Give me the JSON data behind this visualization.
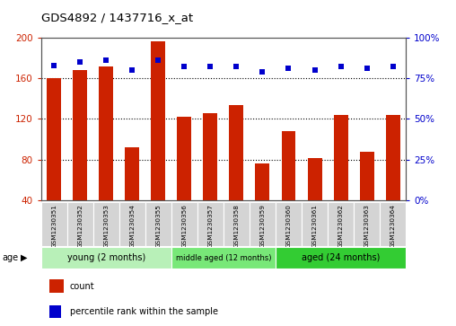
{
  "title": "GDS4892 / 1437716_x_at",
  "samples": [
    "GSM1230351",
    "GSM1230352",
    "GSM1230353",
    "GSM1230354",
    "GSM1230355",
    "GSM1230356",
    "GSM1230357",
    "GSM1230358",
    "GSM1230359",
    "GSM1230360",
    "GSM1230361",
    "GSM1230362",
    "GSM1230363",
    "GSM1230364"
  ],
  "counts": [
    160,
    168,
    172,
    92,
    196,
    122,
    126,
    134,
    76,
    108,
    82,
    124,
    88,
    124
  ],
  "percentiles": [
    83,
    85,
    86,
    80,
    86,
    82,
    82,
    82,
    79,
    81,
    80,
    82,
    81,
    82
  ],
  "groups": [
    {
      "label": "young (2 months)",
      "start": 0,
      "end": 5,
      "color": "#b8f0b8"
    },
    {
      "label": "middle aged (12 months)",
      "start": 5,
      "end": 9,
      "color": "#78e878"
    },
    {
      "label": "aged (24 months)",
      "start": 9,
      "end": 14,
      "color": "#33cc33"
    }
  ],
  "ylim_left": [
    40,
    200
  ],
  "ylim_right": [
    0,
    100
  ],
  "yticks_left": [
    40,
    80,
    120,
    160,
    200
  ],
  "yticks_right": [
    0,
    25,
    50,
    75,
    100
  ],
  "bar_color": "#cc2200",
  "dot_color": "#0000cc",
  "bar_width": 0.55,
  "plot_bg": "#ffffff",
  "left_tick_color": "#cc2200",
  "right_tick_color": "#0000cc",
  "grid_yticks": [
    80,
    120,
    160
  ]
}
